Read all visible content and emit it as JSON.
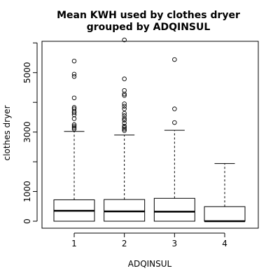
{
  "chart_data": {
    "type": "boxplot",
    "title_lines": [
      "Mean KWH used by clothes dryer",
      "grouped by ADQINSUL"
    ],
    "xlabel": "ADQINSUL",
    "ylabel": "clothes dryer",
    "categories": [
      "1",
      "2",
      "3",
      "4"
    ],
    "yticks": [
      0,
      1000,
      2000,
      3000,
      4000,
      5000,
      6000
    ],
    "ytick_labels": [
      "0",
      "1000",
      "",
      "3000",
      "",
      "5000",
      ""
    ],
    "ylim": [
      -200,
      6200
    ],
    "boxes": [
      {
        "category": "1",
        "whisker_low": 0,
        "q1": 0,
        "median": 350,
        "q3": 720,
        "whisker_high": 3020,
        "outliers": [
          3100,
          3150,
          3200,
          3250,
          3450,
          3580,
          3650,
          3700,
          3780,
          3830,
          4150,
          4870,
          4950,
          5390
        ]
      },
      {
        "category": "2",
        "whisker_low": 0,
        "q1": 0,
        "median": 330,
        "q3": 730,
        "whisker_high": 2900,
        "outliers": [
          3050,
          3100,
          3150,
          3200,
          3300,
          3400,
          3460,
          3550,
          3630,
          3780,
          3870,
          3950,
          4230,
          4280,
          4400,
          4790,
          6100
        ]
      },
      {
        "category": "3",
        "whisker_low": 0,
        "q1": 0,
        "median": 320,
        "q3": 770,
        "whisker_high": 3060,
        "outliers": [
          3320,
          3780,
          5440
        ]
      },
      {
        "category": "4",
        "whisker_low": 0,
        "q1": 0,
        "median": 0,
        "q3": 490,
        "whisker_high": 1940,
        "outliers": []
      }
    ]
  }
}
